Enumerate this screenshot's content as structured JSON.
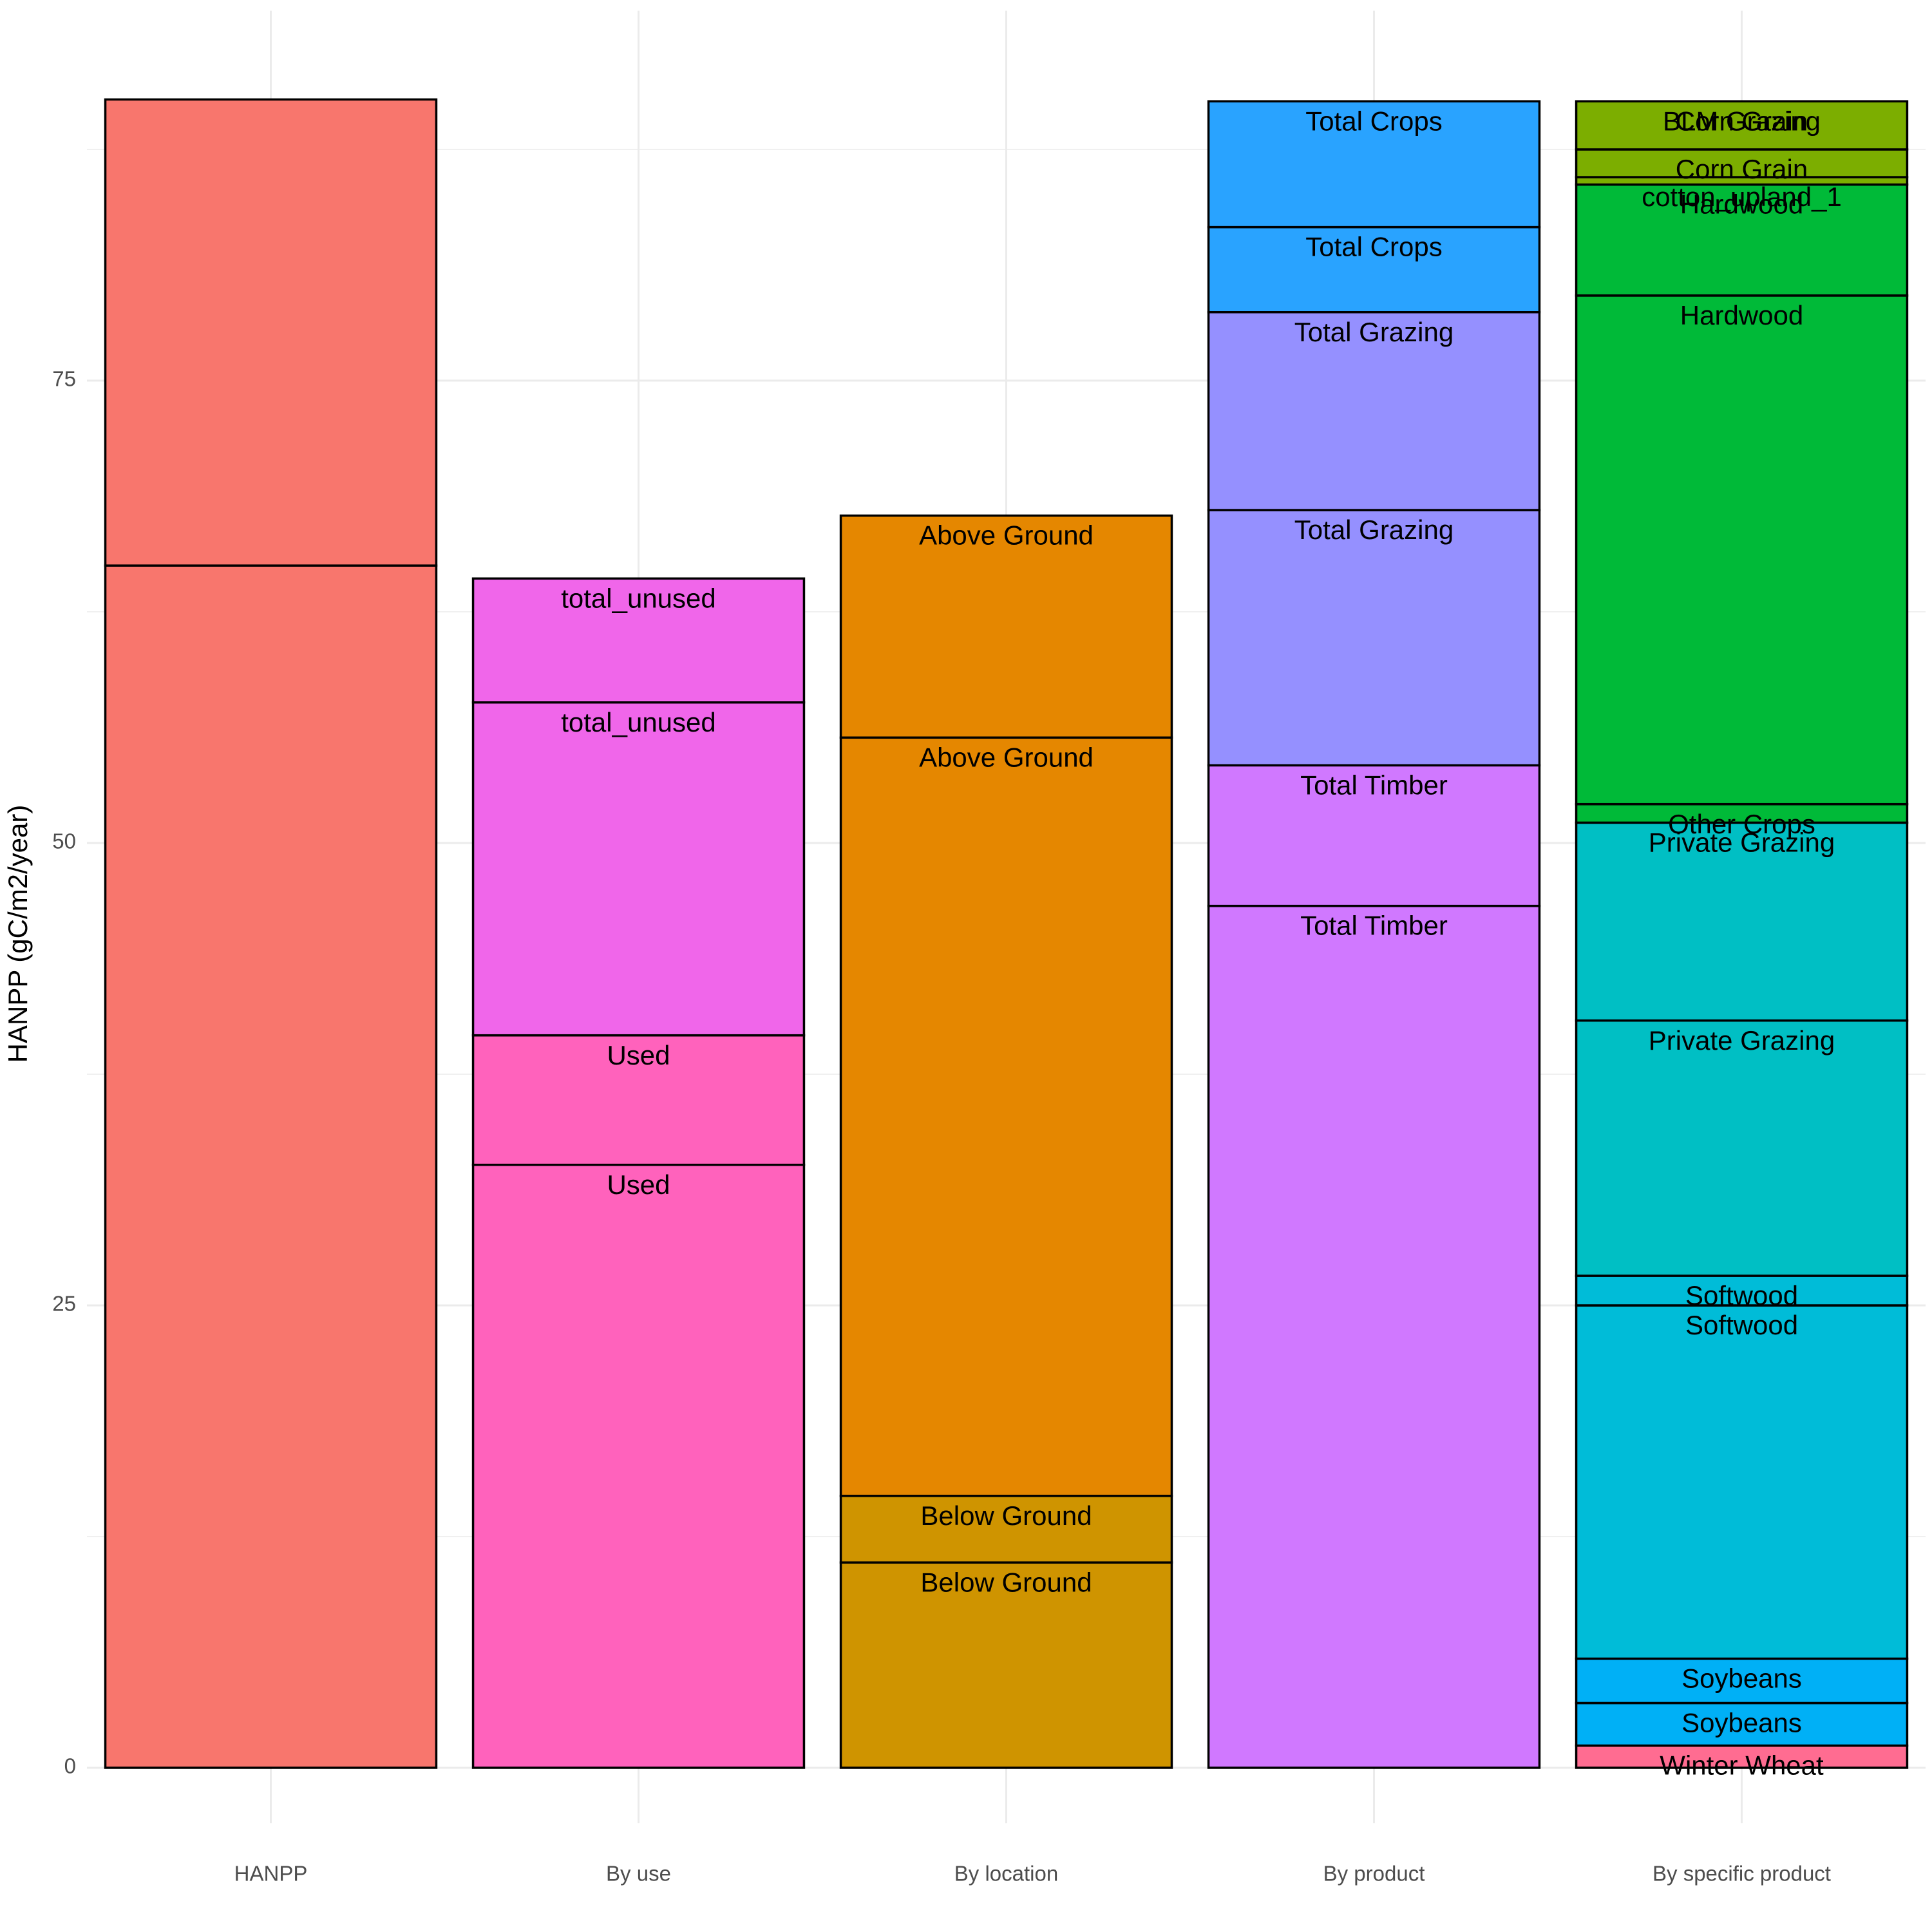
{
  "chart_data": {
    "type": "bar",
    "stacked": true,
    "title": "",
    "xlabel": "",
    "ylabel": "HANPP (gC/m2/year)",
    "ylim": [
      -3,
      95
    ],
    "yticks": [
      0,
      25,
      50,
      75
    ],
    "grid": true,
    "legend": "none",
    "categories": [
      "HANPP",
      "By use",
      "By location",
      "By product",
      "By specific product"
    ],
    "stacks": [
      {
        "category": "HANPP",
        "segments": [
          {
            "label": "",
            "from": 0,
            "to": 65.0,
            "color": "#F8766D"
          },
          {
            "label": "",
            "from": 65.0,
            "to": 90.2,
            "color": "#F8766D"
          }
        ]
      },
      {
        "category": "By use",
        "segments": [
          {
            "label": "Used",
            "from": 0,
            "to": 32.6,
            "color": "#FF62BC"
          },
          {
            "label": "Used",
            "from": 32.6,
            "to": 39.6,
            "color": "#FF62BC"
          },
          {
            "label": "total_unused",
            "from": 39.6,
            "to": 57.6,
            "color": "#F066EA"
          },
          {
            "label": "total_unused",
            "from": 57.6,
            "to": 64.3,
            "color": "#F066EA"
          }
        ]
      },
      {
        "category": "By location",
        "segments": [
          {
            "label": "Below Ground",
            "from": 0,
            "to": 11.1,
            "color": "#CF9400"
          },
          {
            "label": "Below Ground",
            "from": 11.1,
            "to": 14.7,
            "color": "#CF9400"
          },
          {
            "label": "Above Ground",
            "from": 14.7,
            "to": 55.7,
            "color": "#E58700"
          },
          {
            "label": "Above Ground",
            "from": 55.7,
            "to": 67.7,
            "color": "#E58700"
          }
        ]
      },
      {
        "category": "By product",
        "segments": [
          {
            "label": "Total Timber",
            "from": 0,
            "to": 46.6,
            "color": "#D078FF"
          },
          {
            "label": "Total Timber",
            "from": 46.6,
            "to": 54.2,
            "color": "#D078FF"
          },
          {
            "label": "Total Grazing",
            "from": 54.2,
            "to": 68.0,
            "color": "#9590FF"
          },
          {
            "label": "Total Grazing",
            "from": 68.0,
            "to": 78.7,
            "color": "#9590FF"
          },
          {
            "label": "Total Crops",
            "from": 78.7,
            "to": 83.3,
            "color": "#29A3FF"
          },
          {
            "label": "Total Crops",
            "from": 83.3,
            "to": 90.1,
            "color": "#29A3FF"
          }
        ]
      },
      {
        "category": "By specific product",
        "segments": [
          {
            "label": "Winter Wheat",
            "from": 0,
            "to": 1.2,
            "color": "#FF6C91"
          },
          {
            "label": "Soybeans",
            "from": 1.2,
            "to": 3.5,
            "color": "#00B0F6"
          },
          {
            "label": "Soybeans",
            "from": 3.5,
            "to": 5.9,
            "color": "#00B0F6"
          },
          {
            "label": "Softwood",
            "from": 5.9,
            "to": 25.0,
            "color": "#00BCD8"
          },
          {
            "label": "Softwood",
            "from": 25.0,
            "to": 26.6,
            "color": "#00BCD8"
          },
          {
            "label": "Private Grazing",
            "from": 26.6,
            "to": 40.4,
            "color": "#00BFC4"
          },
          {
            "label": "Private Grazing",
            "from": 40.4,
            "to": 51.1,
            "color": "#00BFC4"
          },
          {
            "label": "Other Crops",
            "from": 51.1,
            "to": 52.1,
            "color": "#00BA38"
          },
          {
            "label": "Hardwood",
            "from": 52.1,
            "to": 79.6,
            "color": "#00BA38"
          },
          {
            "label": "Hardwood",
            "from": 79.6,
            "to": 85.6,
            "color": "#00BA38"
          },
          {
            "label": "cotton_upland_1",
            "from": 85.6,
            "to": 86.0,
            "color": "#7CAE00"
          },
          {
            "label": "Corn Grain",
            "from": 86.0,
            "to": 87.5,
            "color": "#7CAE00"
          },
          {
            "label": "Corn Grain",
            "from": 87.5,
            "to": 90.1,
            "color": "#7CAE00"
          },
          {
            "label": "BLM Grazing",
            "from": 90.1,
            "to": 90.1,
            "color": "#7CAE00"
          }
        ]
      }
    ]
  }
}
